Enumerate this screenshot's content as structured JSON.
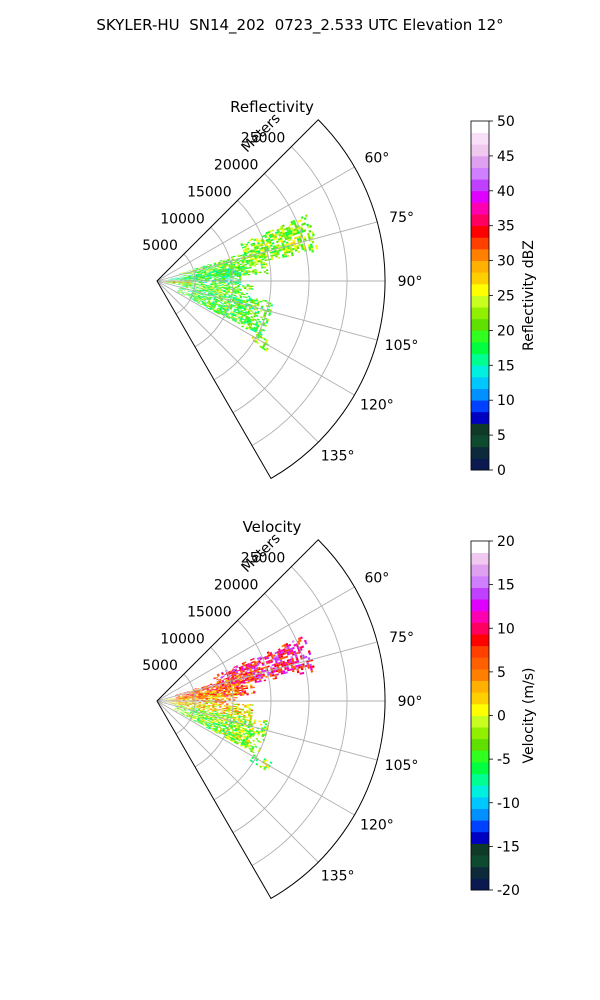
{
  "figure": {
    "title": "SKYLER-HU  SN14_202  0723_2.533 UTC Elevation 12°"
  },
  "chart_data": [
    {
      "type": "heatmap",
      "projection": "polar-sector",
      "title": "Reflectivity",
      "range_label": "Meters",
      "range_ticks": [
        5000,
        10000,
        15000,
        20000,
        25000
      ],
      "range_max": 30000,
      "azimuth_range": [
        45,
        150
      ],
      "azimuth_ticks": [
        60,
        75,
        90,
        105,
        120,
        135
      ],
      "azimuth_unit": "°",
      "grid": true,
      "colorbar": {
        "label": "Reflectivity dBZ",
        "range": [
          0,
          50
        ],
        "ticks": [
          0,
          5,
          10,
          15,
          20,
          25,
          30,
          35,
          40,
          45,
          50
        ],
        "colors": [
          "#0a1a50",
          "#0c2a3a",
          "#0e4a30",
          "#103a28",
          "#0000c0",
          "#0040ff",
          "#0090ff",
          "#00c8ff",
          "#00f0e0",
          "#00ff90",
          "#00ff40",
          "#30ff20",
          "#60e000",
          "#90f000",
          "#c8ff20",
          "#ffff00",
          "#ffd000",
          "#ffb000",
          "#ff8000",
          "#ff4000",
          "#ff0000",
          "#ff0060",
          "#ff00b0",
          "#e000ff",
          "#c040ff",
          "#d080ff",
          "#e0a0f0",
          "#f0c8f0",
          "#f8e0f8",
          "#ffffff"
        ]
      },
      "echo_regions": [
        {
          "az": [
            72,
            86
          ],
          "range": [
            3000,
            14500
          ],
          "value": 20
        },
        {
          "az": [
            66,
            79
          ],
          "range": [
            12000,
            21500
          ],
          "value": 21
        },
        {
          "az": [
            80,
            92
          ],
          "range": [
            1500,
            11000
          ],
          "value": 17
        },
        {
          "az": [
            92,
            100
          ],
          "range": [
            1000,
            12500
          ],
          "value": 20
        },
        {
          "az": [
            100,
            118
          ],
          "range": [
            3000,
            15500
          ],
          "value": 19
        },
        {
          "az": [
            88,
            96
          ],
          "range": [
            0,
            4500
          ],
          "value": 28
        },
        {
          "az": [
            118,
            122
          ],
          "range": [
            14500,
            17000
          ],
          "value": 22
        }
      ]
    },
    {
      "type": "heatmap",
      "projection": "polar-sector",
      "title": "Velocity",
      "range_label": "Meters",
      "range_ticks": [
        5000,
        10000,
        15000,
        20000,
        25000
      ],
      "range_max": 30000,
      "azimuth_range": [
        45,
        150
      ],
      "azimuth_ticks": [
        60,
        75,
        90,
        105,
        120,
        135
      ],
      "azimuth_unit": "°",
      "grid": true,
      "colorbar": {
        "label": "Velocity (m/s)",
        "range": [
          -20,
          20
        ],
        "ticks": [
          -20,
          -15,
          -10,
          -5,
          0,
          5,
          10,
          15,
          20
        ],
        "colors": [
          "#0a1a50",
          "#0c2a3a",
          "#0e4a30",
          "#103a28",
          "#0000c0",
          "#0040ff",
          "#0090ff",
          "#00c8ff",
          "#00f0e0",
          "#00ff90",
          "#00ff40",
          "#30ff20",
          "#60e000",
          "#90f000",
          "#c8ff20",
          "#ffff00",
          "#ffd000",
          "#ffb000",
          "#ff8000",
          "#ff6000",
          "#ff4000",
          "#ff0000",
          "#ff0060",
          "#ff00b0",
          "#e000ff",
          "#c040ff",
          "#d080ff",
          "#e0a0f0",
          "#f0c8f0",
          "#ffffff"
        ]
      },
      "echo_regions": [
        {
          "az": [
            66,
            79
          ],
          "range": [
            8000,
            21000
          ],
          "value": 9
        },
        {
          "az": [
            72,
            86
          ],
          "range": [
            2500,
            13000
          ],
          "value": 6
        },
        {
          "az": [
            80,
            92
          ],
          "range": [
            1000,
            10500
          ],
          "value": 3
        },
        {
          "az": [
            92,
            100
          ],
          "range": [
            1000,
            12500
          ],
          "value": 1
        },
        {
          "az": [
            100,
            118
          ],
          "range": [
            2500,
            15000
          ],
          "value": -3
        },
        {
          "az": [
            118,
            122
          ],
          "range": [
            14500,
            17000
          ],
          "value": -4
        }
      ]
    }
  ]
}
